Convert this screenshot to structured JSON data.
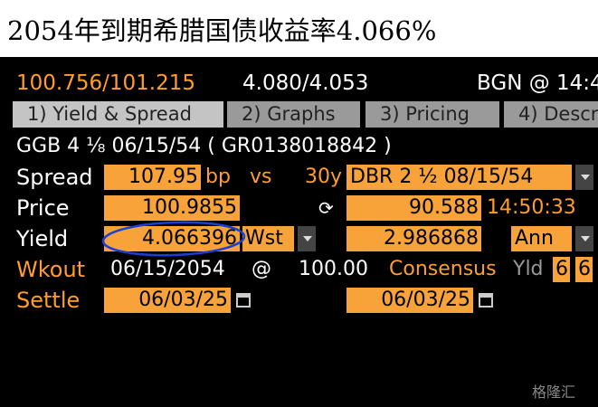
{
  "header": {
    "title": "2054年到期希腊国债收益率4.066%"
  },
  "quote": {
    "bid_ask": "100.756/101.215",
    "yields": "4.080/4.053",
    "source": "BGN @ 14:4"
  },
  "tabs": [
    "1) Yield & Spread",
    "2) Graphs",
    "3) Pricing",
    "4) Descr"
  ],
  "security": "GGB 4 ⅛ 06/15/54 ( GR0138018842 )",
  "spread": {
    "label": "Spread",
    "value": "107.95",
    "unit": "bp",
    "vs": "vs",
    "tenor": "30y",
    "benchmark": "DBR 2 ½ 08/15/54"
  },
  "price": {
    "label": "Price",
    "value": "100.9855",
    "benchmark_value": "90.588",
    "time": "14:50:33"
  },
  "yield": {
    "label": "Yield",
    "value": "4.066396",
    "type": "Wst",
    "benchmark_value": "2.986868",
    "convention": "Ann"
  },
  "workout": {
    "label": "Wkout",
    "date": "06/15/2054",
    "at": "@",
    "price": "100.00",
    "consensus": "Consensus",
    "yld": "Yld",
    "box1": "6",
    "box2": "6"
  },
  "settle": {
    "label": "Settle",
    "date": "06/03/25",
    "benchmark_date": "06/03/25"
  },
  "watermark": "格隆汇"
}
